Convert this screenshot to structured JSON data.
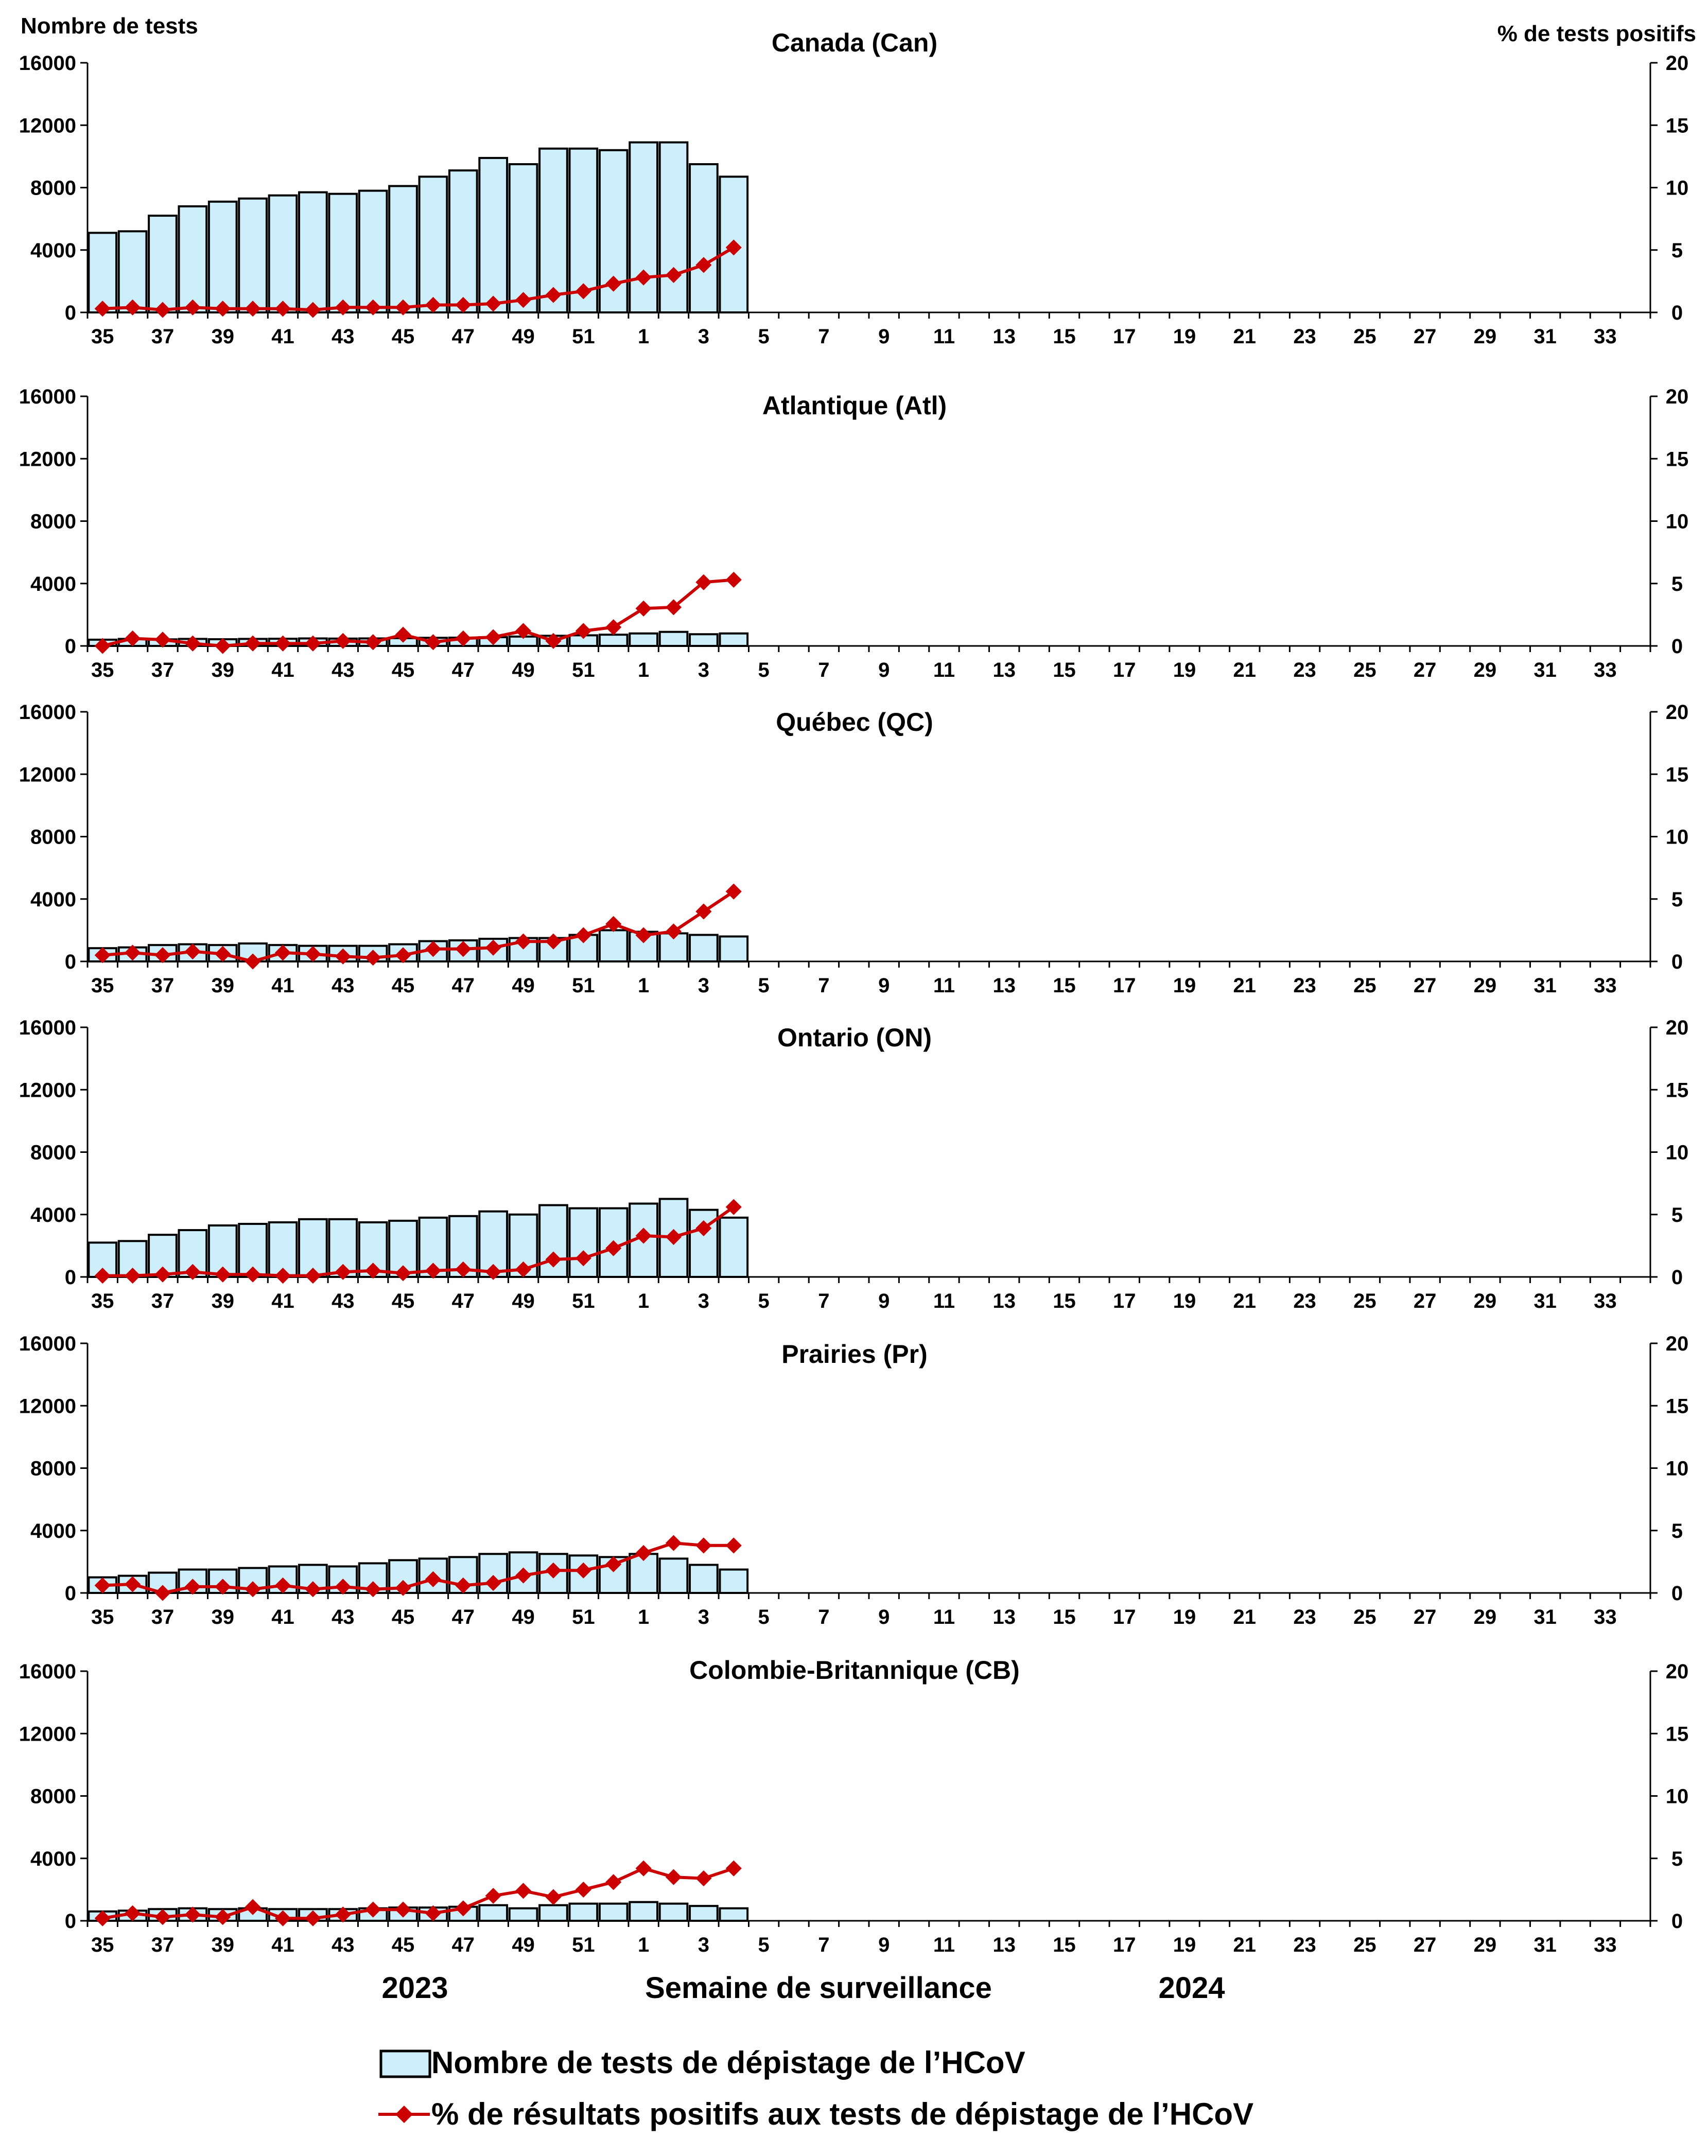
{
  "figure": {
    "left_axis_title": "Nombre de tests",
    "right_axis_title": "% de tests positifs",
    "xlabel": "Semaine de surveillance",
    "year_labels": [
      "2023",
      "2024"
    ],
    "legend": {
      "bars": "Nombre de tests de dépistage de l’HCoV",
      "line": "% de résultats positifs aux tests de dépistage de l’HCoV"
    },
    "colors": {
      "bar_fill": "#cdeffc",
      "bar_stroke": "#000000",
      "line": "#cc0000",
      "axis": "#000000"
    }
  },
  "chart_data": [
    {
      "type": "bar",
      "title": "Canada (Can)",
      "weeks": [
        "35",
        "36",
        "37",
        "38",
        "39",
        "40",
        "41",
        "42",
        "43",
        "44",
        "45",
        "46",
        "47",
        "48",
        "49",
        "50",
        "51",
        "52",
        "1",
        "2",
        "3",
        "4",
        "5",
        "6",
        "7",
        "8",
        "9",
        "10",
        "11",
        "12",
        "13",
        "14",
        "15",
        "16",
        "17",
        "18",
        "19",
        "20",
        "21",
        "22",
        "23",
        "24",
        "25",
        "26",
        "27",
        "28",
        "29",
        "30",
        "31",
        "32",
        "33",
        "34"
      ],
      "x_tick_labels": [
        "35",
        "37",
        "39",
        "41",
        "43",
        "45",
        "47",
        "49",
        "51",
        "1",
        "3",
        "5",
        "7",
        "9",
        "11",
        "13",
        "15",
        "17",
        "19",
        "21",
        "23",
        "25",
        "27",
        "29",
        "31",
        "33"
      ],
      "y_left_ticks": [
        "0",
        "4000",
        "8000",
        "12000",
        "16000"
      ],
      "y_right_ticks": [
        "0",
        "5",
        "10",
        "15",
        "20"
      ],
      "ylim_left": [
        0,
        16000
      ],
      "ylim_right": [
        0,
        20
      ],
      "series": [
        {
          "name": "Nombre de tests de dépistage de l’HCoV",
          "type": "bar",
          "values": [
            5100,
            5200,
            6200,
            6800,
            7100,
            7300,
            7500,
            7700,
            7600,
            7800,
            8100,
            8700,
            9100,
            9900,
            9500,
            10500,
            10500,
            10400,
            10900,
            10900,
            9500,
            8700
          ]
        },
        {
          "name": "% de résultats positifs aux tests de dépistage de l’HCoV",
          "type": "line",
          "values": [
            0.3,
            0.4,
            0.2,
            0.4,
            0.3,
            0.3,
            0.3,
            0.2,
            0.4,
            0.4,
            0.4,
            0.6,
            0.6,
            0.7,
            1.0,
            1.4,
            1.7,
            2.3,
            2.8,
            3.0,
            3.8,
            5.2
          ]
        }
      ]
    },
    {
      "type": "bar",
      "title": "Atlantique (Atl)",
      "weeks": [
        "35",
        "36",
        "37",
        "38",
        "39",
        "40",
        "41",
        "42",
        "43",
        "44",
        "45",
        "46",
        "47",
        "48",
        "49",
        "50",
        "51",
        "52",
        "1",
        "2",
        "3",
        "4",
        "5",
        "6",
        "7",
        "8",
        "9",
        "10",
        "11",
        "12",
        "13",
        "14",
        "15",
        "16",
        "17",
        "18",
        "19",
        "20",
        "21",
        "22",
        "23",
        "24",
        "25",
        "26",
        "27",
        "28",
        "29",
        "30",
        "31",
        "32",
        "33",
        "34"
      ],
      "x_tick_labels": [
        "35",
        "37",
        "39",
        "41",
        "43",
        "45",
        "47",
        "49",
        "51",
        "1",
        "3",
        "5",
        "7",
        "9",
        "11",
        "13",
        "15",
        "17",
        "19",
        "21",
        "23",
        "25",
        "27",
        "29",
        "31",
        "33"
      ],
      "y_left_ticks": [
        "0",
        "4000",
        "8000",
        "12000",
        "16000"
      ],
      "y_right_ticks": [
        "0",
        "5",
        "10",
        "15",
        "20"
      ],
      "ylim_left": [
        0,
        16000
      ],
      "ylim_right": [
        0,
        20
      ],
      "series": [
        {
          "name": "Nombre de tests de dépistage de l’HCoV",
          "type": "bar",
          "values": [
            400,
            450,
            420,
            450,
            430,
            450,
            460,
            480,
            470,
            480,
            500,
            520,
            530,
            560,
            600,
            650,
            680,
            720,
            800,
            900,
            750,
            800
          ]
        },
        {
          "name": "% de résultats positifs aux tests de dépistage de l’HCoV",
          "type": "line",
          "values": [
            0.0,
            0.6,
            0.5,
            0.2,
            0.0,
            0.2,
            0.2,
            0.2,
            0.4,
            0.3,
            0.9,
            0.3,
            0.6,
            0.7,
            1.2,
            0.4,
            1.2,
            1.5,
            3.0,
            3.1,
            5.1,
            5.3
          ]
        }
      ]
    },
    {
      "type": "bar",
      "title": "Québec (QC)",
      "weeks": [
        "35",
        "36",
        "37",
        "38",
        "39",
        "40",
        "41",
        "42",
        "43",
        "44",
        "45",
        "46",
        "47",
        "48",
        "49",
        "50",
        "51",
        "52",
        "1",
        "2",
        "3",
        "4",
        "5",
        "6",
        "7",
        "8",
        "9",
        "10",
        "11",
        "12",
        "13",
        "14",
        "15",
        "16",
        "17",
        "18",
        "19",
        "20",
        "21",
        "22",
        "23",
        "24",
        "25",
        "26",
        "27",
        "28",
        "29",
        "30",
        "31",
        "32",
        "33",
        "34"
      ],
      "x_tick_labels": [
        "35",
        "37",
        "39",
        "41",
        "43",
        "45",
        "47",
        "49",
        "51",
        "1",
        "3",
        "5",
        "7",
        "9",
        "11",
        "13",
        "15",
        "17",
        "19",
        "21",
        "23",
        "25",
        "27",
        "29",
        "31",
        "33"
      ],
      "y_left_ticks": [
        "0",
        "4000",
        "8000",
        "12000",
        "16000"
      ],
      "y_right_ticks": [
        "0",
        "5",
        "10",
        "15",
        "20"
      ],
      "ylim_left": [
        0,
        16000
      ],
      "ylim_right": [
        0,
        20
      ],
      "series": [
        {
          "name": "Nombre de tests de dépistage de l’HCoV",
          "type": "bar",
          "values": [
            850,
            900,
            1050,
            1100,
            1050,
            1150,
            1050,
            1000,
            1000,
            1000,
            1100,
            1300,
            1350,
            1450,
            1500,
            1500,
            1700,
            2000,
            1900,
            1800,
            1700,
            1600
          ]
        },
        {
          "name": "% de résultats positifs aux tests de dépistage de l’HCoV",
          "type": "line",
          "values": [
            0.5,
            0.7,
            0.5,
            0.8,
            0.6,
            0.0,
            0.7,
            0.6,
            0.4,
            0.3,
            0.5,
            1.0,
            1.0,
            1.1,
            1.6,
            1.6,
            2.1,
            3.0,
            2.1,
            2.4,
            4.0,
            5.6
          ]
        }
      ]
    },
    {
      "type": "bar",
      "title": "Ontario (ON)",
      "weeks": [
        "35",
        "36",
        "37",
        "38",
        "39",
        "40",
        "41",
        "42",
        "43",
        "44",
        "45",
        "46",
        "47",
        "48",
        "49",
        "50",
        "51",
        "52",
        "1",
        "2",
        "3",
        "4",
        "5",
        "6",
        "7",
        "8",
        "9",
        "10",
        "11",
        "12",
        "13",
        "14",
        "15",
        "16",
        "17",
        "18",
        "19",
        "20",
        "21",
        "22",
        "23",
        "24",
        "25",
        "26",
        "27",
        "28",
        "29",
        "30",
        "31",
        "32",
        "33",
        "34"
      ],
      "x_tick_labels": [
        "35",
        "37",
        "39",
        "41",
        "43",
        "45",
        "47",
        "49",
        "51",
        "1",
        "3",
        "5",
        "7",
        "9",
        "11",
        "13",
        "15",
        "17",
        "19",
        "21",
        "23",
        "25",
        "27",
        "29",
        "31",
        "33"
      ],
      "y_left_ticks": [
        "0",
        "4000",
        "8000",
        "12000",
        "16000"
      ],
      "y_right_ticks": [
        "0",
        "5",
        "10",
        "15",
        "20"
      ],
      "ylim_left": [
        0,
        16000
      ],
      "ylim_right": [
        0,
        20
      ],
      "series": [
        {
          "name": "Nombre de tests de dépistage de l’HCoV",
          "type": "bar",
          "values": [
            2200,
            2300,
            2700,
            3000,
            3300,
            3400,
            3500,
            3700,
            3700,
            3500,
            3600,
            3800,
            3900,
            4200,
            4000,
            4600,
            4400,
            4400,
            4700,
            5000,
            4300,
            3800
          ]
        },
        {
          "name": "% de résultats positifs aux tests de dépistage de l’HCoV",
          "type": "line",
          "values": [
            0.1,
            0.1,
            0.2,
            0.4,
            0.2,
            0.2,
            0.1,
            0.1,
            0.4,
            0.5,
            0.3,
            0.5,
            0.6,
            0.4,
            0.6,
            1.4,
            1.5,
            2.3,
            3.3,
            3.2,
            3.9,
            5.6
          ]
        }
      ]
    },
    {
      "type": "bar",
      "title": "Prairies (Pr)",
      "weeks": [
        "35",
        "36",
        "37",
        "38",
        "39",
        "40",
        "41",
        "42",
        "43",
        "44",
        "45",
        "46",
        "47",
        "48",
        "49",
        "50",
        "51",
        "52",
        "1",
        "2",
        "3",
        "4",
        "5",
        "6",
        "7",
        "8",
        "9",
        "10",
        "11",
        "12",
        "13",
        "14",
        "15",
        "16",
        "17",
        "18",
        "19",
        "20",
        "21",
        "22",
        "23",
        "24",
        "25",
        "26",
        "27",
        "28",
        "29",
        "30",
        "31",
        "32",
        "33",
        "34"
      ],
      "x_tick_labels": [
        "35",
        "37",
        "39",
        "41",
        "43",
        "45",
        "47",
        "49",
        "51",
        "1",
        "3",
        "5",
        "7",
        "9",
        "11",
        "13",
        "15",
        "17",
        "19",
        "21",
        "23",
        "25",
        "27",
        "29",
        "31",
        "33"
      ],
      "y_left_ticks": [
        "0",
        "4000",
        "8000",
        "12000",
        "16000"
      ],
      "y_right_ticks": [
        "0",
        "5",
        "10",
        "15",
        "20"
      ],
      "ylim_left": [
        0,
        16000
      ],
      "ylim_right": [
        0,
        20
      ],
      "series": [
        {
          "name": "Nombre de tests de dépistage de l’HCoV",
          "type": "bar",
          "values": [
            1000,
            1100,
            1300,
            1500,
            1500,
            1600,
            1700,
            1800,
            1700,
            1900,
            2100,
            2200,
            2300,
            2500,
            2600,
            2500,
            2400,
            2300,
            2500,
            2200,
            1800,
            1500
          ]
        },
        {
          "name": "% de résultats positifs aux tests de dépistage de l’HCoV",
          "type": "line",
          "values": [
            0.6,
            0.7,
            0.0,
            0.5,
            0.5,
            0.3,
            0.6,
            0.3,
            0.5,
            0.3,
            0.4,
            1.1,
            0.6,
            0.8,
            1.4,
            1.8,
            1.8,
            2.3,
            3.2,
            4.0,
            3.8,
            3.8
          ]
        }
      ]
    },
    {
      "type": "bar",
      "title": "Colombie-Britannique (CB)",
      "weeks": [
        "35",
        "36",
        "37",
        "38",
        "39",
        "40",
        "41",
        "42",
        "43",
        "44",
        "45",
        "46",
        "47",
        "48",
        "49",
        "50",
        "51",
        "52",
        "1",
        "2",
        "3",
        "4",
        "5",
        "6",
        "7",
        "8",
        "9",
        "10",
        "11",
        "12",
        "13",
        "14",
        "15",
        "16",
        "17",
        "18",
        "19",
        "20",
        "21",
        "22",
        "23",
        "24",
        "25",
        "26",
        "27",
        "28",
        "29",
        "30",
        "31",
        "32",
        "33",
        "34"
      ],
      "x_tick_labels": [
        "35",
        "37",
        "39",
        "41",
        "43",
        "45",
        "47",
        "49",
        "51",
        "1",
        "3",
        "5",
        "7",
        "9",
        "11",
        "13",
        "15",
        "17",
        "19",
        "21",
        "23",
        "25",
        "27",
        "29",
        "31",
        "33"
      ],
      "y_left_ticks": [
        "0",
        "4000",
        "8000",
        "12000",
        "16000"
      ],
      "y_right_ticks": [
        "0",
        "5",
        "10",
        "15",
        "20"
      ],
      "ylim_left": [
        0,
        16000
      ],
      "ylim_right": [
        0,
        20
      ],
      "series": [
        {
          "name": "Nombre de tests de dépistage de l’HCoV",
          "type": "bar",
          "values": [
            600,
            650,
            750,
            800,
            750,
            800,
            750,
            750,
            750,
            800,
            850,
            850,
            900,
            1000,
            800,
            1000,
            1100,
            1100,
            1200,
            1100,
            950,
            800
          ]
        },
        {
          "name": "% de résultats positifs aux tests de dépistage de l’HCoV",
          "type": "line",
          "values": [
            0.2,
            0.6,
            0.3,
            0.5,
            0.3,
            1.1,
            0.2,
            0.2,
            0.5,
            0.9,
            0.9,
            0.6,
            1.0,
            2.0,
            2.4,
            1.9,
            2.5,
            3.1,
            4.2,
            3.5,
            3.4,
            4.2
          ]
        }
      ]
    }
  ]
}
